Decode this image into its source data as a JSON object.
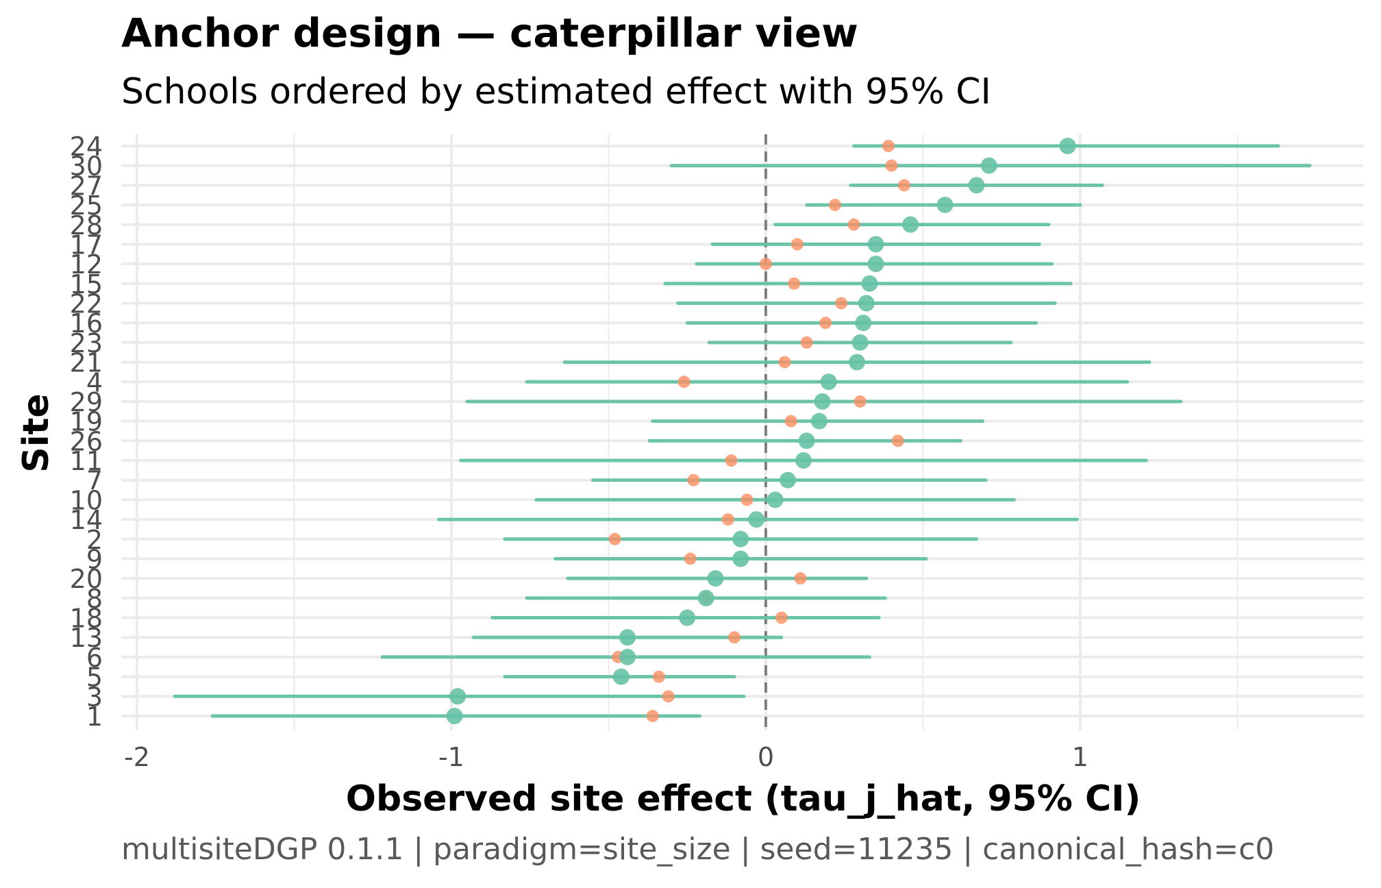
{
  "chart_data": {
    "type": "scatter",
    "title": "Anchor design — caterpillar view",
    "subtitle": "Schools ordered by estimated effect with 95% CI",
    "xlabel": "Observed site effect (tau_j_hat, 95% CI)",
    "ylabel": "Site",
    "caption": "multisiteDGP 0.1.1 | paradigm=site_size | seed=11235 | canonical_hash=c0",
    "xlim": [
      -2.05,
      1.9
    ],
    "x_ticks": [
      -2,
      -1,
      0,
      1
    ],
    "x_tick_labels": [
      "-2",
      "-1",
      "0",
      "1"
    ],
    "reference_line": 0,
    "grid": true,
    "legend": "none",
    "colors": {
      "estimate": "#66C2A5",
      "true_effect": "#FC8D62",
      "reference": "#7f7f7f",
      "grid": "#ebebeb"
    },
    "series": [
      {
        "role": "estimate_with_ci",
        "color": "#66C2A5"
      },
      {
        "role": "true_effect",
        "color": "#FC8D62"
      }
    ],
    "sites": [
      {
        "label": "24",
        "estimate": 0.96,
        "lower": 0.28,
        "upper": 1.63,
        "true_effect": 0.39
      },
      {
        "label": "30",
        "estimate": 0.71,
        "lower": -0.3,
        "upper": 1.73,
        "true_effect": 0.4
      },
      {
        "label": "27",
        "estimate": 0.67,
        "lower": 0.27,
        "upper": 1.07,
        "true_effect": 0.44
      },
      {
        "label": "25",
        "estimate": 0.57,
        "lower": 0.13,
        "upper": 1.0,
        "true_effect": 0.22
      },
      {
        "label": "28",
        "estimate": 0.46,
        "lower": 0.03,
        "upper": 0.9,
        "true_effect": 0.28
      },
      {
        "label": "17",
        "estimate": 0.35,
        "lower": -0.17,
        "upper": 0.87,
        "true_effect": 0.1
      },
      {
        "label": "12",
        "estimate": 0.35,
        "lower": -0.22,
        "upper": 0.91,
        "true_effect": 0.0
      },
      {
        "label": "15",
        "estimate": 0.33,
        "lower": -0.32,
        "upper": 0.97,
        "true_effect": 0.09
      },
      {
        "label": "22",
        "estimate": 0.32,
        "lower": -0.28,
        "upper": 0.92,
        "true_effect": 0.24
      },
      {
        "label": "16",
        "estimate": 0.31,
        "lower": -0.25,
        "upper": 0.86,
        "true_effect": 0.19
      },
      {
        "label": "23",
        "estimate": 0.3,
        "lower": -0.18,
        "upper": 0.78,
        "true_effect": 0.13
      },
      {
        "label": "21",
        "estimate": 0.29,
        "lower": -0.64,
        "upper": 1.22,
        "true_effect": 0.06
      },
      {
        "label": "4",
        "estimate": 0.2,
        "lower": -0.76,
        "upper": 1.15,
        "true_effect": -0.26
      },
      {
        "label": "29",
        "estimate": 0.18,
        "lower": -0.95,
        "upper": 1.32,
        "true_effect": 0.3
      },
      {
        "label": "19",
        "estimate": 0.17,
        "lower": -0.36,
        "upper": 0.69,
        "true_effect": 0.08
      },
      {
        "label": "26",
        "estimate": 0.13,
        "lower": -0.37,
        "upper": 0.62,
        "true_effect": 0.42
      },
      {
        "label": "11",
        "estimate": 0.12,
        "lower": -0.97,
        "upper": 1.21,
        "true_effect": -0.11
      },
      {
        "label": "7",
        "estimate": 0.07,
        "lower": -0.55,
        "upper": 0.7,
        "true_effect": -0.23
      },
      {
        "label": "10",
        "estimate": 0.03,
        "lower": -0.73,
        "upper": 0.79,
        "true_effect": -0.06
      },
      {
        "label": "14",
        "estimate": -0.03,
        "lower": -1.04,
        "upper": 0.99,
        "true_effect": -0.12
      },
      {
        "label": "2",
        "estimate": -0.08,
        "lower": -0.83,
        "upper": 0.67,
        "true_effect": -0.48
      },
      {
        "label": "9",
        "estimate": -0.08,
        "lower": -0.67,
        "upper": 0.51,
        "true_effect": -0.24
      },
      {
        "label": "20",
        "estimate": -0.16,
        "lower": -0.63,
        "upper": 0.32,
        "true_effect": 0.11
      },
      {
        "label": "8",
        "estimate": -0.19,
        "lower": -0.76,
        "upper": 0.38,
        "true_effect": -0.19
      },
      {
        "label": "18",
        "estimate": -0.25,
        "lower": -0.87,
        "upper": 0.36,
        "true_effect": 0.05
      },
      {
        "label": "13",
        "estimate": -0.44,
        "lower": -0.93,
        "upper": 0.05,
        "true_effect": -0.1
      },
      {
        "label": "6",
        "estimate": -0.44,
        "lower": -1.22,
        "upper": 0.33,
        "true_effect": -0.47
      },
      {
        "label": "5",
        "estimate": -0.46,
        "lower": -0.83,
        "upper": -0.1,
        "true_effect": -0.34
      },
      {
        "label": "3",
        "estimate": -0.98,
        "lower": -1.88,
        "upper": -0.07,
        "true_effect": -0.31
      },
      {
        "label": "1",
        "estimate": -0.99,
        "lower": -1.76,
        "upper": -0.21,
        "true_effect": -0.36
      }
    ]
  }
}
